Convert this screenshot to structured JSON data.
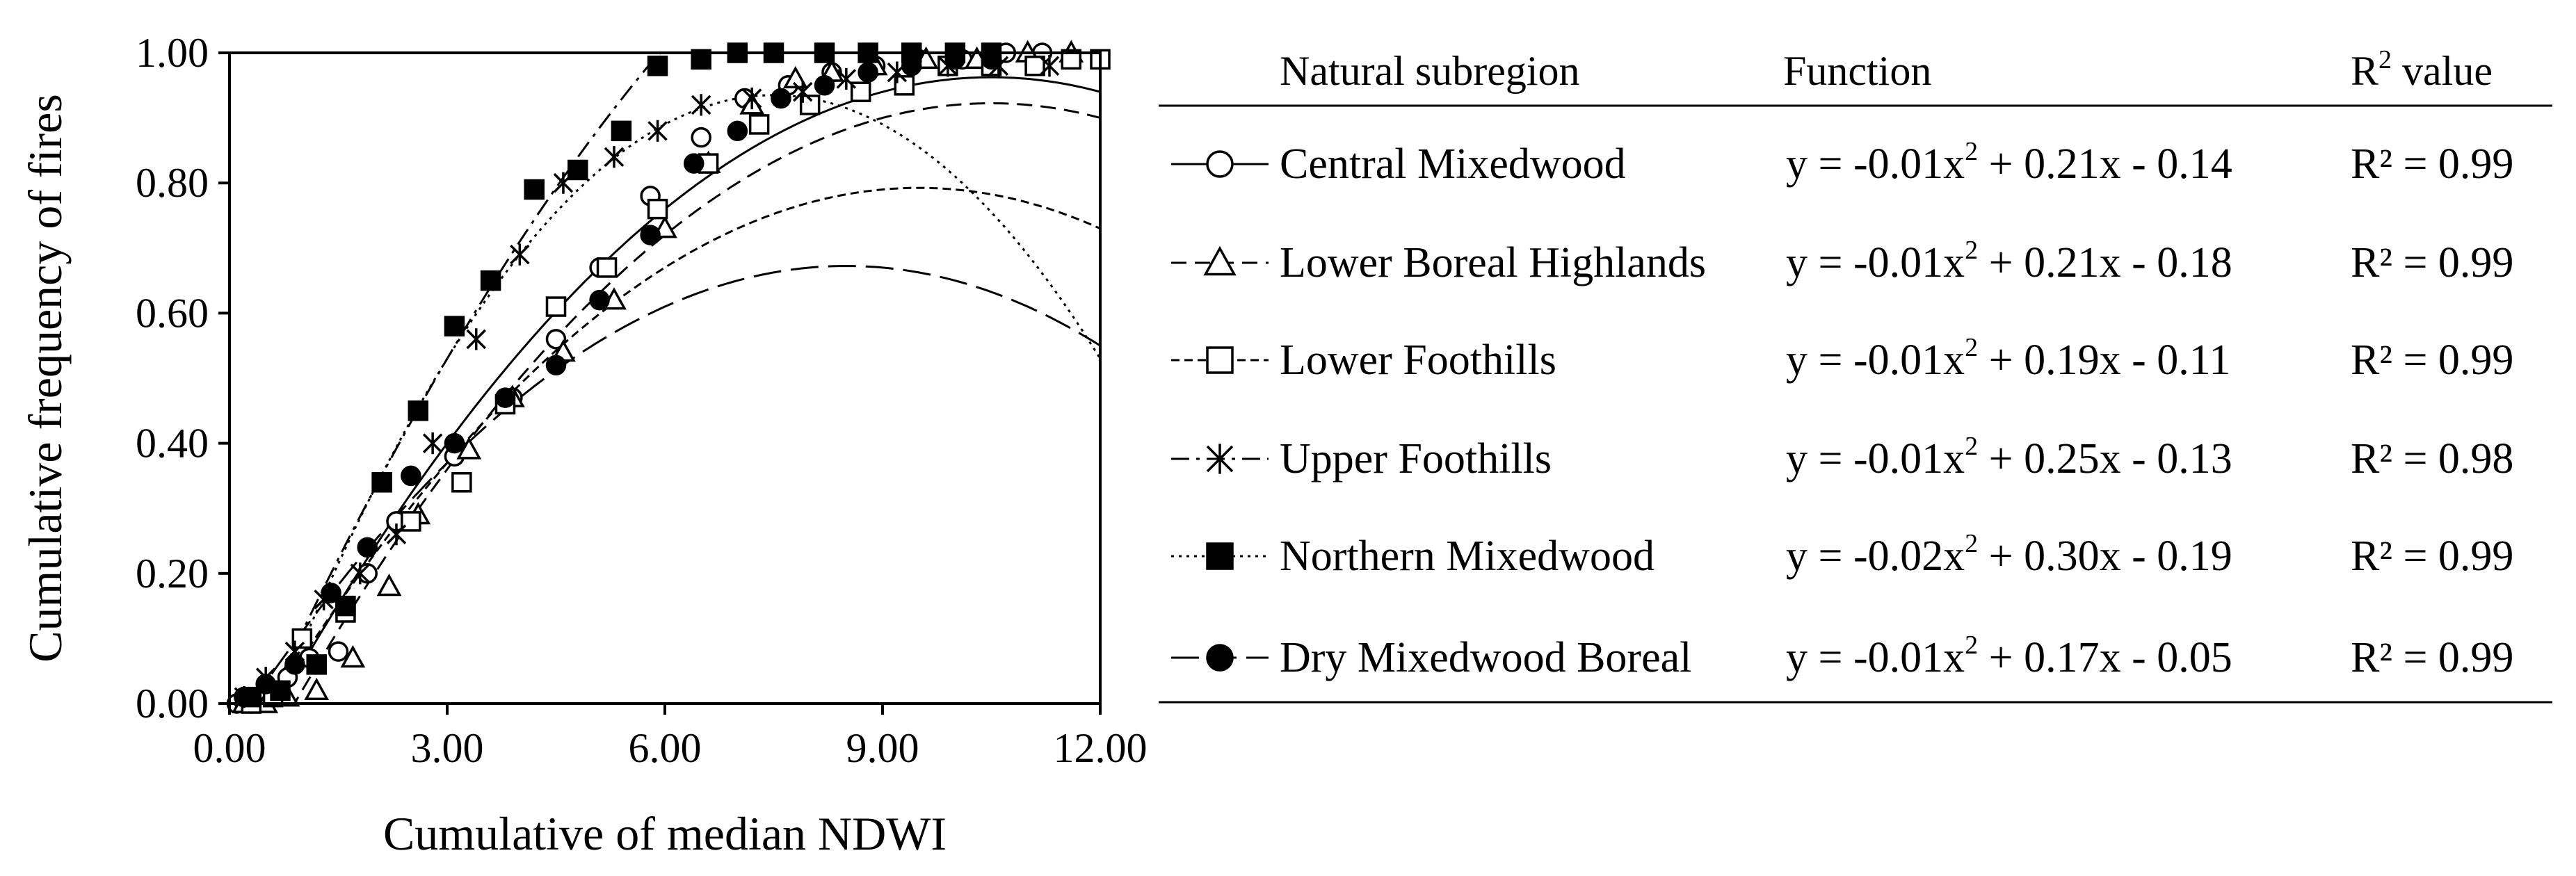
{
  "chart_data": {
    "type": "scatter",
    "xlabel": "Cumulative of median NDWI",
    "ylabel": "Cumulative frequency of fires",
    "xlim": [
      0,
      12
    ],
    "ylim": [
      0,
      1
    ],
    "x_ticks": [
      "0.00",
      "3.00",
      "6.00",
      "9.00",
      "12.00"
    ],
    "y_ticks": [
      "0.00",
      "0.20",
      "0.40",
      "0.60",
      "0.80",
      "1.00"
    ],
    "grid": false,
    "legend_placement": "right",
    "table_headers": {
      "subregion": "Natural subregion",
      "function": "Function",
      "r2_prefix": "R",
      "r2_sup": "2",
      "r2_suffix": " value"
    },
    "series": [
      {
        "name": "Central Mixedwood",
        "marker": "circle-open",
        "line": "solid",
        "func_a": "y = -0.01x",
        "func_b": " + 0.21x - 0.14",
        "r2_label": "R² = 0.99",
        "coef": [
          -0.01,
          0.21,
          -0.14
        ],
        "points": [
          [
            0.1,
            0.0
          ],
          [
            0.3,
            0.0
          ],
          [
            0.5,
            0.02
          ],
          [
            0.8,
            0.04
          ],
          [
            1.1,
            0.07
          ],
          [
            1.5,
            0.08
          ],
          [
            1.9,
            0.2
          ],
          [
            2.3,
            0.28
          ],
          [
            3.1,
            0.38
          ],
          [
            3.9,
            0.47
          ],
          [
            4.5,
            0.56
          ],
          [
            5.1,
            0.67
          ],
          [
            5.8,
            0.78
          ],
          [
            6.5,
            0.87
          ],
          [
            7.1,
            0.93
          ],
          [
            7.7,
            0.95
          ],
          [
            8.3,
            0.97
          ],
          [
            8.9,
            0.98
          ],
          [
            9.5,
            0.99
          ],
          [
            10.1,
            0.99
          ],
          [
            10.7,
            1.0
          ],
          [
            11.2,
            1.0
          ]
        ]
      },
      {
        "name": "Lower Boreal Highlands",
        "marker": "triangle-open",
        "line": "dashed",
        "func_a": "y = -0.01x",
        "func_b": " + 0.21x - 0.18",
        "r2_label": "R² = 0.99",
        "coef": [
          -0.01,
          0.21,
          -0.18
        ],
        "points": [
          [
            0.2,
            0.0
          ],
          [
            0.5,
            0.0
          ],
          [
            0.8,
            0.01
          ],
          [
            1.2,
            0.02
          ],
          [
            1.7,
            0.07
          ],
          [
            2.2,
            0.18
          ],
          [
            2.6,
            0.29
          ],
          [
            3.3,
            0.39
          ],
          [
            3.9,
            0.47
          ],
          [
            4.6,
            0.54
          ],
          [
            5.3,
            0.62
          ],
          [
            6.0,
            0.73
          ],
          [
            6.6,
            0.83
          ],
          [
            7.2,
            0.92
          ],
          [
            7.8,
            0.96
          ],
          [
            8.3,
            0.97
          ],
          [
            8.9,
            0.98
          ],
          [
            9.6,
            0.99
          ],
          [
            10.3,
            0.99
          ],
          [
            11.0,
            1.0
          ],
          [
            11.6,
            1.0
          ]
        ]
      },
      {
        "name": "Lower Foothills",
        "marker": "square-open",
        "line": "fine-dashed",
        "func_a": "y = -0.01x",
        "func_b": " + 0.19x - 0.11",
        "r2_label": "R² = 0.99",
        "coef": [
          -0.01,
          0.19,
          -0.11
        ],
        "points": [
          [
            0.3,
            0.0
          ],
          [
            0.6,
            0.01
          ],
          [
            1.0,
            0.1
          ],
          [
            1.6,
            0.14
          ],
          [
            2.5,
            0.28
          ],
          [
            3.2,
            0.34
          ],
          [
            3.8,
            0.46
          ],
          [
            4.5,
            0.61
          ],
          [
            5.2,
            0.67
          ],
          [
            5.9,
            0.76
          ],
          [
            6.6,
            0.83
          ],
          [
            7.3,
            0.89
          ],
          [
            8.0,
            0.92
          ],
          [
            8.7,
            0.94
          ],
          [
            9.3,
            0.95
          ],
          [
            9.9,
            0.98
          ],
          [
            10.5,
            0.98
          ],
          [
            11.1,
            0.98
          ],
          [
            11.6,
            0.99
          ],
          [
            12.0,
            0.99
          ]
        ]
      },
      {
        "name": "Upper Foothills",
        "marker": "asterisk",
        "line": "dash-dot",
        "func_a": "y = -0.01x",
        "func_b": " + 0.25x - 0.13",
        "r2_label": "R² = 0.98",
        "coef": [
          -0.01,
          0.25,
          -0.13
        ],
        "points": [
          [
            0.2,
            0.01
          ],
          [
            0.5,
            0.04
          ],
          [
            0.9,
            0.08
          ],
          [
            1.3,
            0.16
          ],
          [
            1.8,
            0.2
          ],
          [
            2.3,
            0.26
          ],
          [
            2.8,
            0.4
          ],
          [
            3.4,
            0.56
          ],
          [
            4.0,
            0.69
          ],
          [
            4.6,
            0.8
          ],
          [
            5.3,
            0.84
          ],
          [
            5.9,
            0.88
          ],
          [
            6.5,
            0.92
          ],
          [
            7.2,
            0.93
          ],
          [
            7.9,
            0.94
          ],
          [
            8.5,
            0.96
          ],
          [
            9.2,
            0.97
          ],
          [
            9.9,
            0.98
          ],
          [
            10.6,
            0.98
          ],
          [
            11.3,
            0.98
          ]
        ]
      },
      {
        "name": "Northern Mixedwood",
        "marker": "square-filled",
        "line": "dotted",
        "func_a": "y = -0.02x",
        "func_b": " + 0.30x - 0.19",
        "r2_label": "R² = 0.99",
        "coef": [
          -0.02,
          0.3,
          -0.19
        ],
        "points": [
          [
            0.3,
            0.01
          ],
          [
            0.7,
            0.02
          ],
          [
            1.2,
            0.06
          ],
          [
            1.6,
            0.15
          ],
          [
            2.1,
            0.34
          ],
          [
            2.6,
            0.45
          ],
          [
            3.1,
            0.58
          ],
          [
            3.6,
            0.65
          ],
          [
            4.2,
            0.79
          ],
          [
            4.8,
            0.82
          ],
          [
            5.4,
            0.88
          ],
          [
            5.9,
            0.98
          ],
          [
            6.5,
            0.99
          ],
          [
            7.0,
            1.0
          ],
          [
            7.5,
            1.0
          ],
          [
            8.2,
            1.0
          ],
          [
            8.8,
            1.0
          ],
          [
            9.4,
            1.0
          ],
          [
            10.0,
            1.0
          ],
          [
            10.5,
            1.0
          ]
        ]
      },
      {
        "name": "Dry Mixedwood Boreal",
        "marker": "circle-filled",
        "line": "long-dash",
        "func_a": "y = -0.01x",
        "func_b": " + 0.17x - 0.05",
        "r2_label": "R² = 0.99",
        "coef": [
          -0.01,
          0.17,
          -0.05
        ],
        "points": [
          [
            0.2,
            0.01
          ],
          [
            0.5,
            0.03
          ],
          [
            0.9,
            0.06
          ],
          [
            1.4,
            0.17
          ],
          [
            1.9,
            0.24
          ],
          [
            2.5,
            0.35
          ],
          [
            3.1,
            0.4
          ],
          [
            3.8,
            0.47
          ],
          [
            4.5,
            0.52
          ],
          [
            5.1,
            0.62
          ],
          [
            5.8,
            0.72
          ],
          [
            6.4,
            0.83
          ],
          [
            7.0,
            0.88
          ],
          [
            7.6,
            0.93
          ],
          [
            8.2,
            0.95
          ],
          [
            8.8,
            0.97
          ],
          [
            9.4,
            0.98
          ],
          [
            10.0,
            0.99
          ],
          [
            10.5,
            0.99
          ]
        ]
      }
    ]
  }
}
